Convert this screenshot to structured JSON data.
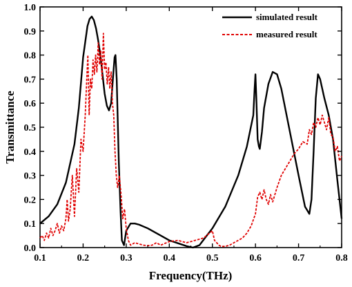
{
  "chart_data": {
    "type": "line",
    "xlabel": "Frequency(THz)",
    "ylabel": "Transmittance",
    "xlim": [
      0.1,
      0.8
    ],
    "ylim": [
      0.0,
      1.0
    ],
    "xticks": [
      "0.1",
      "0.2",
      "0.3",
      "0.4",
      "0.5",
      "0.6",
      "0.7",
      "0.8"
    ],
    "yticks": [
      "0.0",
      "0.1",
      "0.2",
      "0.3",
      "0.4",
      "0.5",
      "0.6",
      "0.7",
      "0.8",
      "0.9",
      "1.0"
    ],
    "grid": false,
    "legend_position": "top-right",
    "series": [
      {
        "name": "simulated result",
        "color": "#000000",
        "style": "solid",
        "x": [
          0.1,
          0.12,
          0.14,
          0.16,
          0.18,
          0.19,
          0.2,
          0.21,
          0.215,
          0.22,
          0.225,
          0.23,
          0.235,
          0.24,
          0.245,
          0.25,
          0.255,
          0.26,
          0.265,
          0.27,
          0.273,
          0.275,
          0.278,
          0.28,
          0.283,
          0.287,
          0.29,
          0.295,
          0.3,
          0.31,
          0.32,
          0.33,
          0.35,
          0.38,
          0.4,
          0.42,
          0.44,
          0.455,
          0.47,
          0.5,
          0.53,
          0.56,
          0.58,
          0.595,
          0.598,
          0.6,
          0.602,
          0.605,
          0.608,
          0.61,
          0.615,
          0.62,
          0.63,
          0.64,
          0.65,
          0.66,
          0.68,
          0.7,
          0.715,
          0.725,
          0.73,
          0.735,
          0.74,
          0.745,
          0.75,
          0.76,
          0.77,
          0.78,
          0.79,
          0.8
        ],
        "y": [
          0.1,
          0.13,
          0.18,
          0.27,
          0.43,
          0.58,
          0.79,
          0.92,
          0.95,
          0.96,
          0.945,
          0.91,
          0.86,
          0.8,
          0.72,
          0.64,
          0.59,
          0.57,
          0.6,
          0.72,
          0.79,
          0.8,
          0.7,
          0.55,
          0.35,
          0.15,
          0.03,
          0.01,
          0.07,
          0.1,
          0.1,
          0.095,
          0.08,
          0.05,
          0.03,
          0.018,
          0.006,
          0.0,
          0.01,
          0.08,
          0.17,
          0.3,
          0.42,
          0.55,
          0.66,
          0.72,
          0.62,
          0.45,
          0.42,
          0.41,
          0.48,
          0.58,
          0.68,
          0.73,
          0.72,
          0.66,
          0.48,
          0.3,
          0.17,
          0.14,
          0.2,
          0.4,
          0.62,
          0.72,
          0.7,
          0.62,
          0.55,
          0.45,
          0.28,
          0.12
        ]
      },
      {
        "name": "measured result",
        "color": "#e00000",
        "style": "dashed",
        "x": [
          0.1,
          0.105,
          0.11,
          0.115,
          0.12,
          0.125,
          0.13,
          0.135,
          0.14,
          0.145,
          0.15,
          0.155,
          0.16,
          0.163,
          0.166,
          0.17,
          0.175,
          0.18,
          0.185,
          0.19,
          0.195,
          0.2,
          0.205,
          0.208,
          0.211,
          0.214,
          0.217,
          0.22,
          0.223,
          0.226,
          0.229,
          0.232,
          0.235,
          0.238,
          0.241,
          0.244,
          0.247,
          0.25,
          0.253,
          0.256,
          0.259,
          0.262,
          0.265,
          0.268,
          0.271,
          0.274,
          0.277,
          0.28,
          0.284,
          0.288,
          0.292,
          0.296,
          0.3,
          0.305,
          0.31,
          0.32,
          0.33,
          0.34,
          0.35,
          0.36,
          0.37,
          0.38,
          0.4,
          0.42,
          0.44,
          0.46,
          0.48,
          0.5,
          0.505,
          0.51,
          0.515,
          0.52,
          0.53,
          0.54,
          0.55,
          0.56,
          0.57,
          0.58,
          0.59,
          0.6,
          0.605,
          0.61,
          0.615,
          0.62,
          0.625,
          0.63,
          0.635,
          0.64,
          0.65,
          0.66,
          0.67,
          0.68,
          0.69,
          0.7,
          0.71,
          0.72,
          0.725,
          0.73,
          0.735,
          0.74,
          0.745,
          0.75,
          0.755,
          0.76,
          0.765,
          0.77,
          0.775,
          0.78,
          0.785,
          0.79,
          0.795,
          0.8
        ],
        "y": [
          0.04,
          0.05,
          0.03,
          0.06,
          0.04,
          0.08,
          0.05,
          0.07,
          0.1,
          0.06,
          0.09,
          0.07,
          0.12,
          0.2,
          0.11,
          0.16,
          0.3,
          0.13,
          0.33,
          0.23,
          0.45,
          0.4,
          0.55,
          0.68,
          0.8,
          0.55,
          0.7,
          0.66,
          0.78,
          0.72,
          0.8,
          0.73,
          0.85,
          0.76,
          0.82,
          0.7,
          0.89,
          0.74,
          0.77,
          0.68,
          0.75,
          0.66,
          0.73,
          0.6,
          0.55,
          0.4,
          0.3,
          0.25,
          0.3,
          0.22,
          0.12,
          0.16,
          0.08,
          0.03,
          0.01,
          0.02,
          0.015,
          0.01,
          0.008,
          0.01,
          0.02,
          0.01,
          0.025,
          0.03,
          0.02,
          0.03,
          0.04,
          0.07,
          0.03,
          0.02,
          0.01,
          0.005,
          0.005,
          0.01,
          0.02,
          0.03,
          0.04,
          0.06,
          0.09,
          0.14,
          0.21,
          0.23,
          0.2,
          0.24,
          0.2,
          0.18,
          0.22,
          0.19,
          0.25,
          0.3,
          0.33,
          0.36,
          0.39,
          0.41,
          0.44,
          0.43,
          0.49,
          0.47,
          0.52,
          0.5,
          0.54,
          0.51,
          0.55,
          0.52,
          0.49,
          0.54,
          0.47,
          0.46,
          0.4,
          0.42,
          0.36,
          0.38
        ]
      }
    ]
  }
}
